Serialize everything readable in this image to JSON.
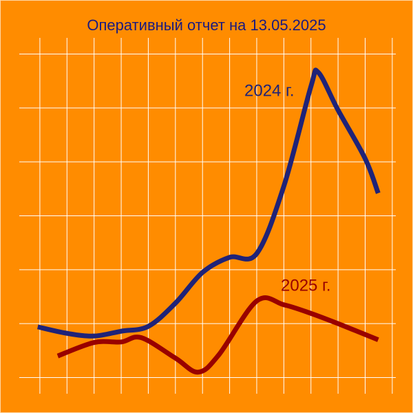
{
  "chart_data": {
    "type": "line",
    "title": "Оперативный отчет на 13.05.2025",
    "xlim": [
      -0.76,
      13.13
    ],
    "xticks": [
      0,
      1,
      2,
      3,
      4,
      5,
      6,
      7,
      8,
      9,
      10,
      11,
      12,
      13
    ],
    "ylim": [
      -0.3,
      6.3
    ],
    "yticks": [
      0,
      1,
      2,
      3,
      4,
      5,
      6
    ],
    "grid": true,
    "series": [
      {
        "name": "2024 г.",
        "color": "#1f2378",
        "x": [
          -0.08,
          1,
          2,
          3,
          4,
          5,
          6,
          7,
          8,
          9,
          10,
          10.27,
          11,
          12,
          12.48
        ],
        "values": [
          0.94,
          0.82,
          0.77,
          0.86,
          0.95,
          1.38,
          1.95,
          2.23,
          2.3,
          3.55,
          5.4,
          5.66,
          4.96,
          4.06,
          3.42
        ]
      },
      {
        "name": "2025 г.",
        "color": "#990000",
        "x": [
          0.66,
          2,
          3,
          3.74,
          5,
          5.84,
          6.6,
          8,
          9,
          10,
          11,
          12.48
        ],
        "values": [
          0.4,
          0.65,
          0.66,
          0.74,
          0.36,
          0.1,
          0.42,
          1.42,
          1.35,
          1.19,
          1.0,
          0.7
        ]
      }
    ]
  }
}
